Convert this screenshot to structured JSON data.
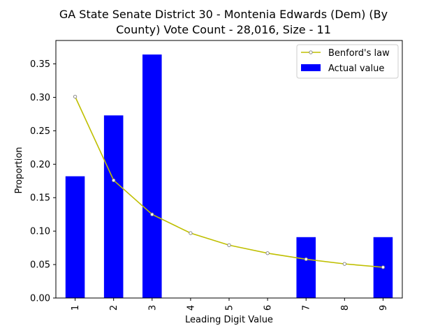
{
  "chart_data": {
    "type": "bar",
    "title_line1": "GA State Senate District 30 - Montenia Edwards (Dem) (By",
    "title_line2": "County) Vote Count - 28,016, Size - 11",
    "xlabel": "Leading Digit Value",
    "ylabel": "Proportion",
    "categories": [
      "1",
      "2",
      "3",
      "4",
      "5",
      "6",
      "7",
      "8",
      "9"
    ],
    "ylim": [
      0,
      0.385
    ],
    "yticks": [
      "0.00",
      "0.05",
      "0.10",
      "0.15",
      "0.20",
      "0.25",
      "0.30",
      "0.35"
    ],
    "legend_position": "top-right",
    "series": [
      {
        "name": "Benford's law",
        "kind": "line",
        "color": "#bfbf00",
        "values": [
          0.301,
          0.176,
          0.125,
          0.097,
          0.079,
          0.067,
          0.058,
          0.051,
          0.046
        ]
      },
      {
        "name": "Actual value",
        "kind": "bar",
        "color": "#0000ff",
        "values": [
          0.182,
          0.273,
          0.364,
          0,
          0,
          0,
          0.091,
          0,
          0.091
        ]
      }
    ]
  }
}
